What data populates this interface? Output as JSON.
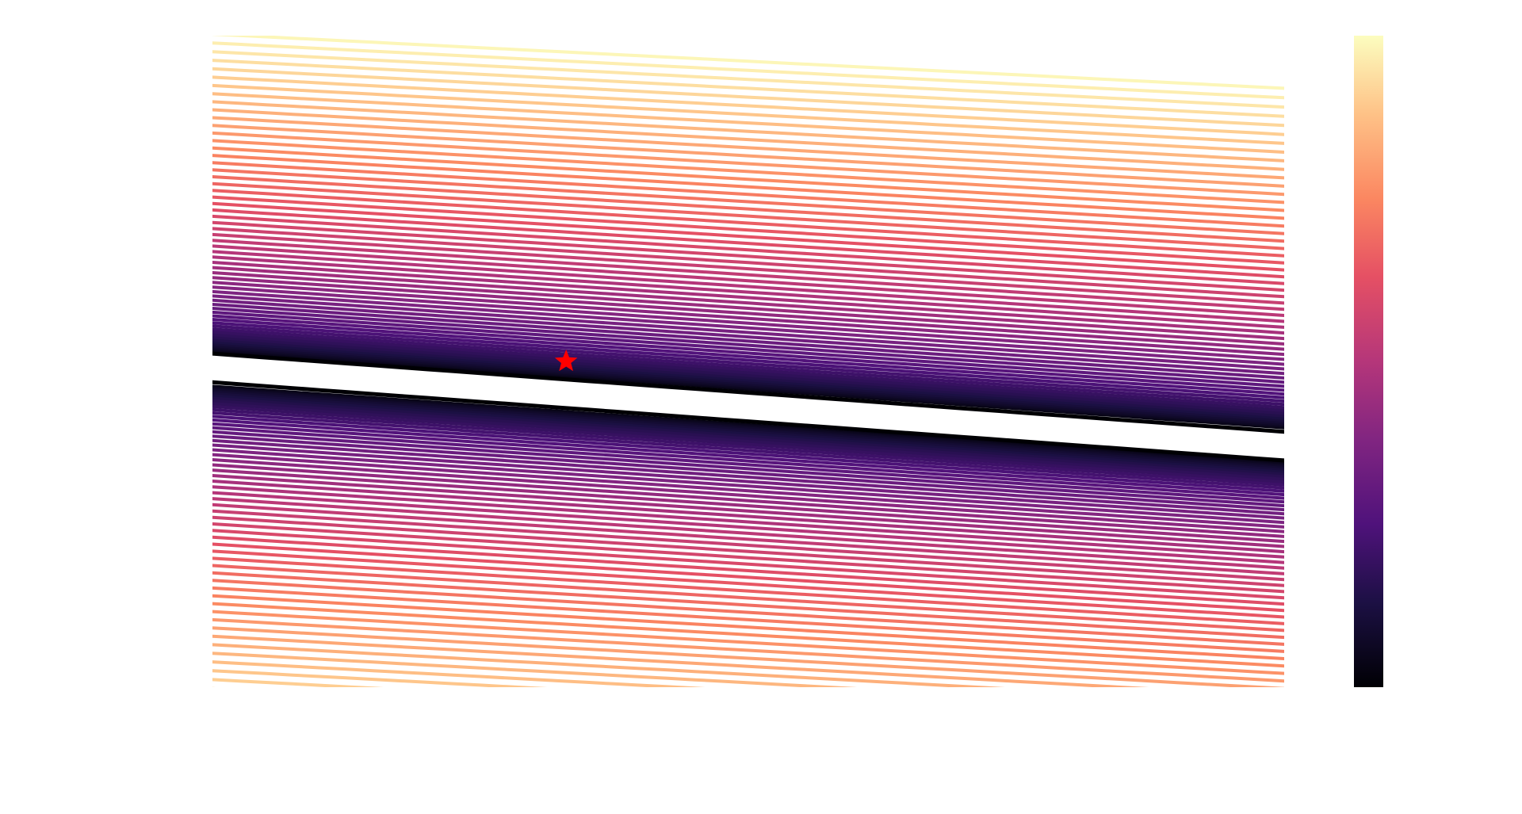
{
  "chart_data": {
    "type": "contour",
    "colormap": "magma",
    "title": "",
    "xlabel": "",
    "ylabel": "",
    "x_range": [
      0,
      1
    ],
    "y_range": [
      0,
      1
    ],
    "axes_visible": false,
    "grid": false,
    "colorbar": {
      "visible": true,
      "placement": "right",
      "tick_labels": []
    },
    "field": {
      "valley_center_left": 0.51,
      "valley_center_right": 0.63,
      "valley_tilt": 0.12,
      "minimum_level": 0.03,
      "outer_level": 0.985,
      "levels_count": 60
    },
    "marker": {
      "symbol": "star",
      "color": "#ff0000",
      "x": 0.33,
      "y": 0.5
    },
    "colors": {
      "marker": "#ff0000",
      "darkest": "#000004",
      "brightest": "#fcfdbf"
    }
  }
}
